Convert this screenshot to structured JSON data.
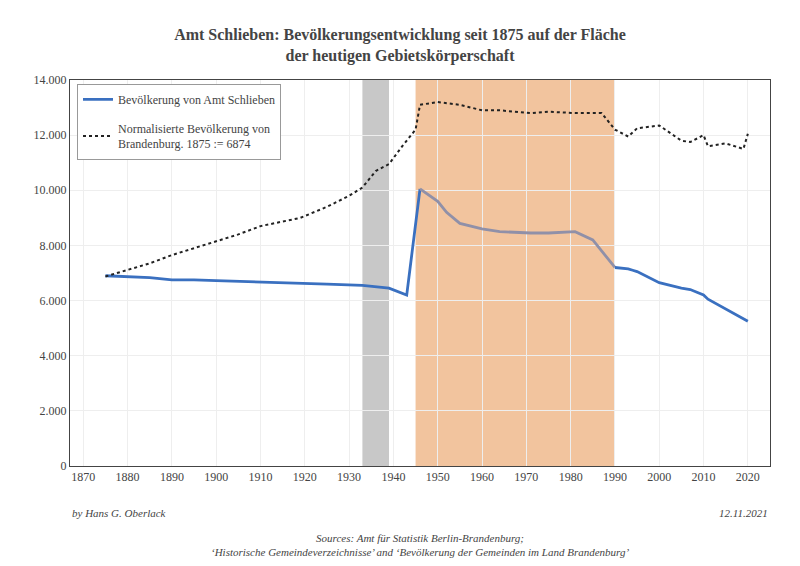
{
  "chart_data": {
    "type": "line",
    "title": "Amt Schlieben: Bevölkerungsentwicklung seit 1875 auf der Fläche\nder heutigen Gebietskörperschaft",
    "xlim": [
      1867,
      2025
    ],
    "ylim": [
      0,
      14000
    ],
    "xticks": [
      1870,
      1880,
      1890,
      1900,
      1910,
      1920,
      1930,
      1940,
      1950,
      1960,
      1970,
      1980,
      1990,
      2000,
      2010,
      2020
    ],
    "yticks": [
      0,
      {
        "value": 2000,
        "label": "2.000"
      },
      {
        "value": 4000,
        "label": "4.000"
      },
      {
        "value": 6000,
        "label": "6.000"
      },
      {
        "value": 8000,
        "label": "8.000"
      },
      {
        "value": 10000,
        "label": "10.000"
      },
      {
        "value": 12000,
        "label": "12.000"
      },
      {
        "value": 14000,
        "label": "14.000"
      }
    ],
    "grid": true,
    "legend": "upper left",
    "spans": [
      {
        "range": [
          1933,
          1939
        ],
        "color": "#c8c8c8"
      },
      {
        "range": [
          1945,
          1990
        ],
        "color": "#f2c49e"
      }
    ],
    "series": [
      {
        "name": "Bevölkerung von Amt Schlieben",
        "color": "#3a70c0",
        "line_style": "solid",
        "x": [
          1875,
          1880,
          1885,
          1890,
          1895,
          1900,
          1905,
          1910,
          1919,
          1925,
          1933,
          1939,
          1943,
          1946,
          1950,
          1952,
          1955,
          1960,
          1964,
          1971,
          1975,
          1981,
          1985,
          1990,
          1993,
          1994,
          1995,
          2000,
          2005,
          2007,
          2010,
          2011,
          2015,
          2020
        ],
        "values": [
          6900,
          6870,
          6830,
          6750,
          6750,
          6720,
          6700,
          6680,
          6650,
          6600,
          6550,
          6450,
          6200,
          10050,
          9600,
          9200,
          8800,
          8600,
          8500,
          8450,
          8450,
          8500,
          8200,
          7200,
          7150,
          7100,
          7050,
          6650,
          6450,
          6400,
          6200,
          6050,
          5700,
          5250
        ],
        "colors": [
          "#3a70c0",
          "#3a70c0",
          "#3a70c0",
          "#3a70c0",
          "#3a70c0",
          "#3a70c0",
          "#3a70c0",
          "#3a70c0",
          "#3a70c0",
          "#3a70c0",
          "#3a70c0",
          "#3a70c0",
          "#3a70c0",
          "#9090a8",
          "#9090a8",
          "#9090a8",
          "#9090a8",
          "#9090a8",
          "#9090a8",
          "#9090a8",
          "#9090a8",
          "#9090a8",
          "#9090a8",
          "#3a70c0",
          "#3a70c0",
          "#3a70c0",
          "#3a70c0",
          "#3a70c0",
          "#3a70c0",
          "#3a70c0",
          "#3a70c0",
          "#3a70c0",
          "#3a70c0",
          "#3a70c0"
        ]
      },
      {
        "name": "Normalisierte Bevölkerung von\nBrandenburg. 1875 := 6874",
        "color": "#222222",
        "line_style": "dotted",
        "x": [
          1875,
          1880,
          1885,
          1890,
          1895,
          1900,
          1905,
          1910,
          1919,
          1925,
          1930,
          1933,
          1936,
          1939,
          1942,
          1945,
          1946,
          1950,
          1955,
          1960,
          1964,
          1971,
          1975,
          1981,
          1987,
          1990,
          1993,
          1994,
          1995,
          2000,
          2005,
          2007,
          2010,
          2011,
          2015,
          2019,
          2020
        ],
        "values": [
          6874,
          7100,
          7350,
          7650,
          7900,
          8150,
          8400,
          8700,
          9000,
          9400,
          9800,
          10100,
          10700,
          10950,
          11600,
          12200,
          13100,
          13200,
          13100,
          12900,
          12900,
          12800,
          12850,
          12800,
          12800,
          12200,
          11950,
          12100,
          12250,
          12350,
          11800,
          11750,
          12000,
          11600,
          11700,
          11500,
          12050
        ]
      }
    ],
    "annotations": [
      "by Hans G. Oberlack",
      "Sources: Amt für Statistik Berlin-Brandenburg;\n‘Historische Gemeindeverzeichnisse’ and ‘Bevölkerung der Gemeinden im Land Brandenburg’",
      "12.11.2021"
    ]
  }
}
